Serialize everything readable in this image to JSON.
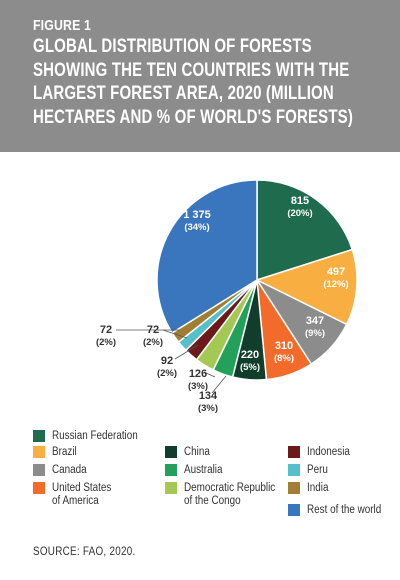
{
  "header": {
    "figure_label": "FIGURE 1",
    "title": "GLOBAL DISTRIBUTION OF FORESTS SHOWING THE TEN COUNTRIES WITH THE LARGEST FOREST AREA, 2020 (MILLION HECTARES AND % OF WORLD'S FORESTS)"
  },
  "chart_data": {
    "type": "pie",
    "title": "GLOBAL DISTRIBUTION OF FORESTS SHOWING THE TEN COUNTRIES WITH THE LARGEST FOREST AREA, 2020 (MILLION HECTARES AND % OF WORLD'S FORESTS)",
    "slices": [
      {
        "name": "Russian Federation",
        "value": 815,
        "value_label": "815",
        "percent_label": "(20%)",
        "color": "#1e6b4d"
      },
      {
        "name": "Brazil",
        "value": 497,
        "value_label": "497",
        "percent_label": "(12%)",
        "color": "#f9ae41"
      },
      {
        "name": "Canada",
        "value": 347,
        "value_label": "347",
        "percent_label": "(9%)",
        "color": "#8c8c8c"
      },
      {
        "name": "United States of America",
        "value": 310,
        "value_label": "310",
        "percent_label": "(8%)",
        "color": "#f26b2a"
      },
      {
        "name": "China",
        "value": 220,
        "value_label": "220",
        "percent_label": "(5%)",
        "color": "#113e2c"
      },
      {
        "name": "Australia",
        "value": 134,
        "value_label": "134",
        "percent_label": "(3%)",
        "color": "#23a05a"
      },
      {
        "name": "Democratic Republic of the Congo",
        "value": 126,
        "value_label": "126",
        "percent_label": "(3%)",
        "color": "#a3c853"
      },
      {
        "name": "Indonesia",
        "value": 92,
        "value_label": "92",
        "percent_label": "(2%)",
        "color": "#6c1919"
      },
      {
        "name": "Peru",
        "value": 72,
        "value_label": "72",
        "percent_label": "(2%)",
        "color": "#55bfca"
      },
      {
        "name": "India",
        "value": 72,
        "value_label": "72",
        "percent_label": "(2%)",
        "color": "#a07e33"
      },
      {
        "name": "Rest of the world",
        "value": 1375,
        "value_label": "1 375",
        "percent_label": "(34%)",
        "color": "#3a76bd"
      }
    ],
    "legend": [
      {
        "label": "Russian Federation",
        "color": "#1e6b4d"
      },
      {
        "label": "Brazil",
        "color": "#f9ae41"
      },
      {
        "label": "Canada",
        "color": "#8c8c8c"
      },
      {
        "label": "United States\nof America",
        "color": "#f26b2a"
      },
      {
        "label": "China",
        "color": "#113e2c"
      },
      {
        "label": "Australia",
        "color": "#23a05a"
      },
      {
        "label": "Democratic Republic\nof the Congo",
        "color": "#a3c853"
      },
      {
        "label": "Indonesia",
        "color": "#6c1919"
      },
      {
        "label": "Peru",
        "color": "#55bfca"
      },
      {
        "label": "India",
        "color": "#a07e33"
      },
      {
        "label": "Rest of the world",
        "color": "#3a76bd"
      }
    ],
    "legend_placement": "bottom"
  },
  "source": "SOURCE: FAO, 2020."
}
